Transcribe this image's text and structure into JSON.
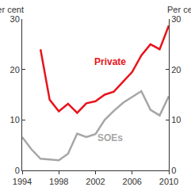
{
  "chart_data": {
    "type": "line",
    "ylabel": "Per cent",
    "y2label": "Per cent",
    "x": [
      1994,
      1995,
      1996,
      1997,
      1998,
      1999,
      2000,
      2001,
      2002,
      2003,
      2004,
      2005,
      2006,
      2007,
      2008,
      2009,
      2010
    ],
    "series": [
      {
        "name": "Private",
        "color": "#e8141c",
        "values": [
          null,
          null,
          24,
          14,
          11.7,
          13.2,
          11.4,
          13.3,
          13.7,
          15,
          15.6,
          17.5,
          19.5,
          22.8,
          25,
          24,
          28.7
        ]
      },
      {
        "name": "SOEs",
        "color": "#a6a6a6",
        "values": [
          6.6,
          4.2,
          2.3,
          2.1,
          2.0,
          3.3,
          7.3,
          6.6,
          7.2,
          10,
          11.8,
          13.4,
          14.6,
          15.7,
          12,
          10.9,
          14.7
        ]
      }
    ],
    "xlim": [
      1994,
      2010
    ],
    "xticks": [
      1994,
      1998,
      2002,
      2006,
      2010
    ],
    "ylim": [
      0,
      30
    ],
    "yticks": [
      0,
      10,
      20,
      30
    ],
    "y2lim": [
      0,
      30
    ],
    "y2ticks": [
      0,
      10,
      20,
      30
    ],
    "grid": false
  }
}
